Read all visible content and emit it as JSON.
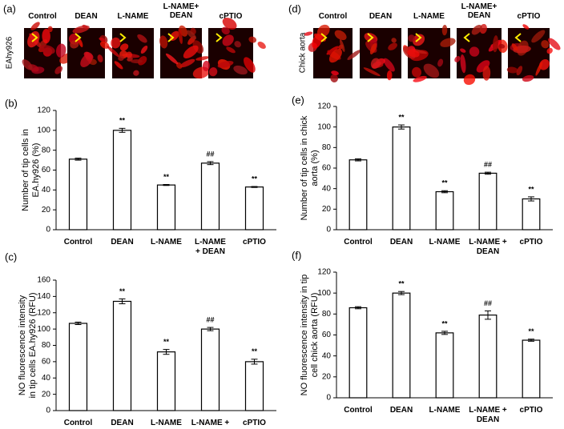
{
  "image_panels": [
    {
      "label": "(a)",
      "side_label": "EAhy926",
      "captions": [
        "Control",
        "DEAN",
        "L-NAME",
        "L-NAME+\nDEAN",
        "cPTIO"
      ]
    },
    {
      "label": "(d)",
      "side_label": "Chick aorta",
      "captions": [
        "Control",
        "DEAN",
        "L-NAME",
        "L-NAME+\nDEAN",
        "cPTIO"
      ]
    }
  ],
  "chart_data": [
    {
      "type": "bar",
      "panel_label": "(b)",
      "ylabel": "Number of tip cells in\nEA.hy926 (%)",
      "categories": [
        "Control",
        "DEAN",
        "L-NAME",
        "L-NAME\n+ DEAN",
        "cPTIO"
      ],
      "values": [
        71,
        100,
        45,
        67,
        43
      ],
      "errors": [
        1,
        2,
        0.5,
        1.5,
        0.5
      ],
      "value_annotations": [
        null,
        "**",
        "**",
        "##",
        "**"
      ],
      "ylim": [
        0,
        120
      ],
      "yticks": [
        0,
        20,
        40,
        60,
        80,
        100,
        120
      ]
    },
    {
      "type": "bar",
      "panel_label": "(c)",
      "ylabel": "NO fluorescence intensity\nin tip cells EA.hy926 (RFU)",
      "categories": [
        "Control",
        "DEAN",
        "L-NAME",
        "L-NAME +\nDEAN",
        "cPTIO"
      ],
      "values": [
        107,
        134,
        72,
        100,
        60
      ],
      "errors": [
        1.5,
        3,
        3,
        2,
        3
      ],
      "value_annotations": [
        null,
        "**",
        "**",
        "##",
        "**"
      ],
      "ylim": [
        0,
        160
      ],
      "yticks": [
        0,
        20,
        40,
        60,
        80,
        100,
        120,
        140,
        160
      ]
    },
    {
      "type": "bar",
      "panel_label": "(e)",
      "ylabel": "Number of tip cells  in chick\naorta (%)",
      "categories": [
        "Control",
        "DEAN",
        "L-NAME",
        "L-NAME +\nDEAN",
        "cPTIO"
      ],
      "values": [
        68,
        100,
        37,
        55,
        30
      ],
      "errors": [
        1,
        2,
        1,
        1,
        2
      ],
      "value_annotations": [
        null,
        "**",
        "**",
        "##",
        "**"
      ],
      "ylim": [
        0,
        120
      ],
      "yticks": [
        0,
        20,
        40,
        60,
        80,
        100,
        120
      ]
    },
    {
      "type": "bar",
      "panel_label": "(f)",
      "ylabel": "NO fluorescence intensity in tip\ncell chick aorta (RFU)",
      "categories": [
        "Control",
        "DEAN",
        "L-NAME",
        "L-NAME +\nDEAN",
        "cPTIO"
      ],
      "values": [
        86,
        100,
        62,
        79,
        55
      ],
      "errors": [
        1,
        1.5,
        1.5,
        4,
        1
      ],
      "value_annotations": [
        null,
        "**",
        "**",
        "##",
        "**"
      ],
      "ylim": [
        0,
        120
      ],
      "yticks": [
        0,
        20,
        40,
        60,
        80,
        100,
        120
      ]
    }
  ]
}
